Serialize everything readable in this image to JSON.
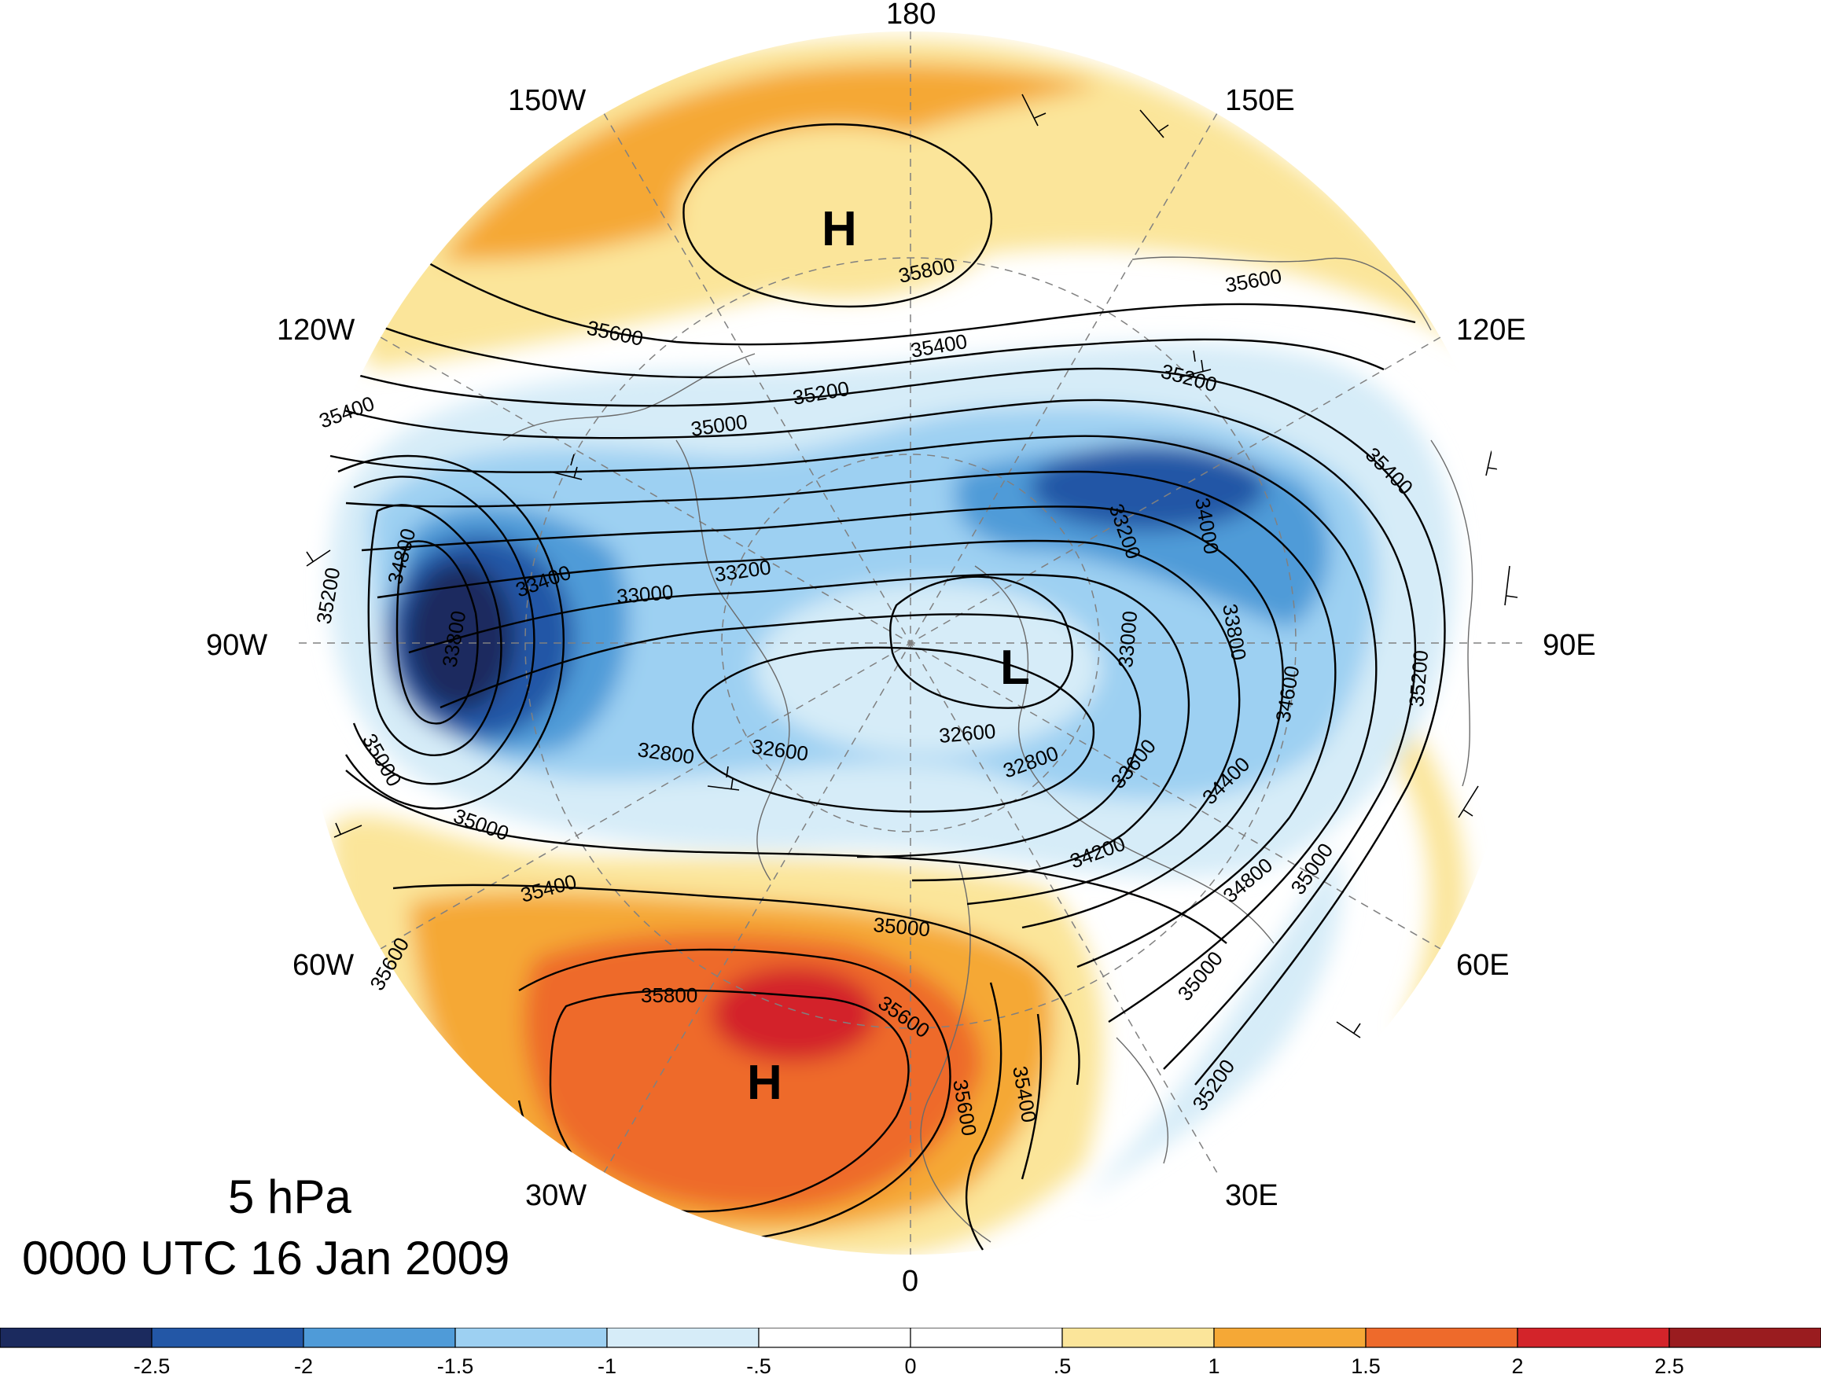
{
  "title": {
    "level": "5 hPa",
    "time": "0000 UTC 16 Jan 2009"
  },
  "longitude_labels": [
    "180",
    "150E",
    "120E",
    "90E",
    "60E",
    "30E",
    "0",
    "30W",
    "60W",
    "90W",
    "120W",
    "150W"
  ],
  "contour_labels": [
    "35800",
    "35600",
    "35400",
    "35200",
    "35000",
    "34800",
    "34600",
    "34400",
    "34200",
    "34000",
    "33800",
    "33600",
    "33400",
    "33200",
    "33000",
    "32800",
    "32600"
  ],
  "highs_lows": [
    "H",
    "H",
    "L"
  ],
  "colorbar": {
    "ticks": [
      "-2.5",
      "-2",
      "-1.5",
      "-1",
      "-.5",
      "0",
      ".5",
      "1",
      "1.5",
      "2",
      "2.5"
    ],
    "colors": [
      "#1b2a5e",
      "#2357a6",
      "#4f9bd8",
      "#9dd0f2",
      "#d6ecf8",
      "#ffffff",
      "#ffffff",
      "#fbe59a",
      "#f5a836",
      "#ee6a2b",
      "#d3242a",
      "#9a1c1f"
    ]
  }
}
